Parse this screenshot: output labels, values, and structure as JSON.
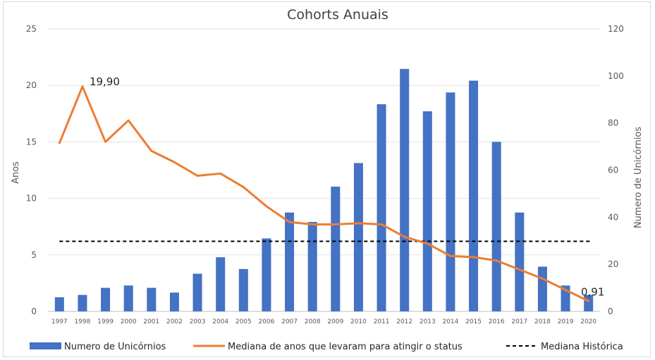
{
  "chart_data": {
    "type": "bar",
    "title": "Cohorts Anuais",
    "ylabel_left": "Anos",
    "ylabel_right": "Numero de Unicórnios",
    "ylim_left": [
      0,
      25
    ],
    "ylim_right": [
      0,
      120
    ],
    "yticks_left": [
      "0",
      "5",
      "10",
      "15",
      "20",
      "25"
    ],
    "yticks_right": [
      "0",
      "20",
      "40",
      "60",
      "80",
      "100",
      "120"
    ],
    "categories": [
      "1997",
      "1998",
      "1999",
      "2000",
      "2001",
      "2002",
      "2003",
      "2004",
      "2005",
      "2006",
      "2007",
      "2008",
      "2009",
      "2010",
      "2011",
      "2012",
      "2013",
      "2014",
      "2015",
      "2016",
      "2017",
      "2018",
      "2019",
      "2020"
    ],
    "grid": true,
    "legend_position": "bottom",
    "series": [
      {
        "name": "Numero de Unicórnios",
        "type": "bar",
        "axis": "right",
        "color": "#4472c4",
        "values": [
          6,
          7,
          10,
          11,
          10,
          8,
          16,
          23,
          18,
          31,
          42,
          38,
          53,
          63,
          88,
          103,
          85,
          93,
          98,
          72,
          42,
          19,
          11,
          7
        ]
      },
      {
        "name": "Mediana de anos que levaram para atingir o status",
        "type": "line",
        "axis": "left",
        "color": "#ed7d31",
        "values": [
          14.9,
          19.9,
          15.0,
          16.9,
          14.2,
          13.2,
          12.0,
          12.2,
          11.0,
          9.3,
          7.9,
          7.7,
          7.7,
          7.8,
          7.7,
          6.6,
          6.0,
          4.9,
          4.8,
          4.5,
          3.7,
          2.9,
          1.9,
          0.91
        ]
      },
      {
        "name": "Mediana Histórica",
        "type": "hline",
        "axis": "left",
        "color": "#000000",
        "value": 6.2
      }
    ],
    "annotations": [
      {
        "text": "19,90",
        "category": "1998",
        "series": "Mediana de anos que levaram para atingir o status"
      },
      {
        "text": "0,91",
        "category": "2020",
        "series": "Mediana de anos que levaram para atingir o status"
      }
    ]
  }
}
